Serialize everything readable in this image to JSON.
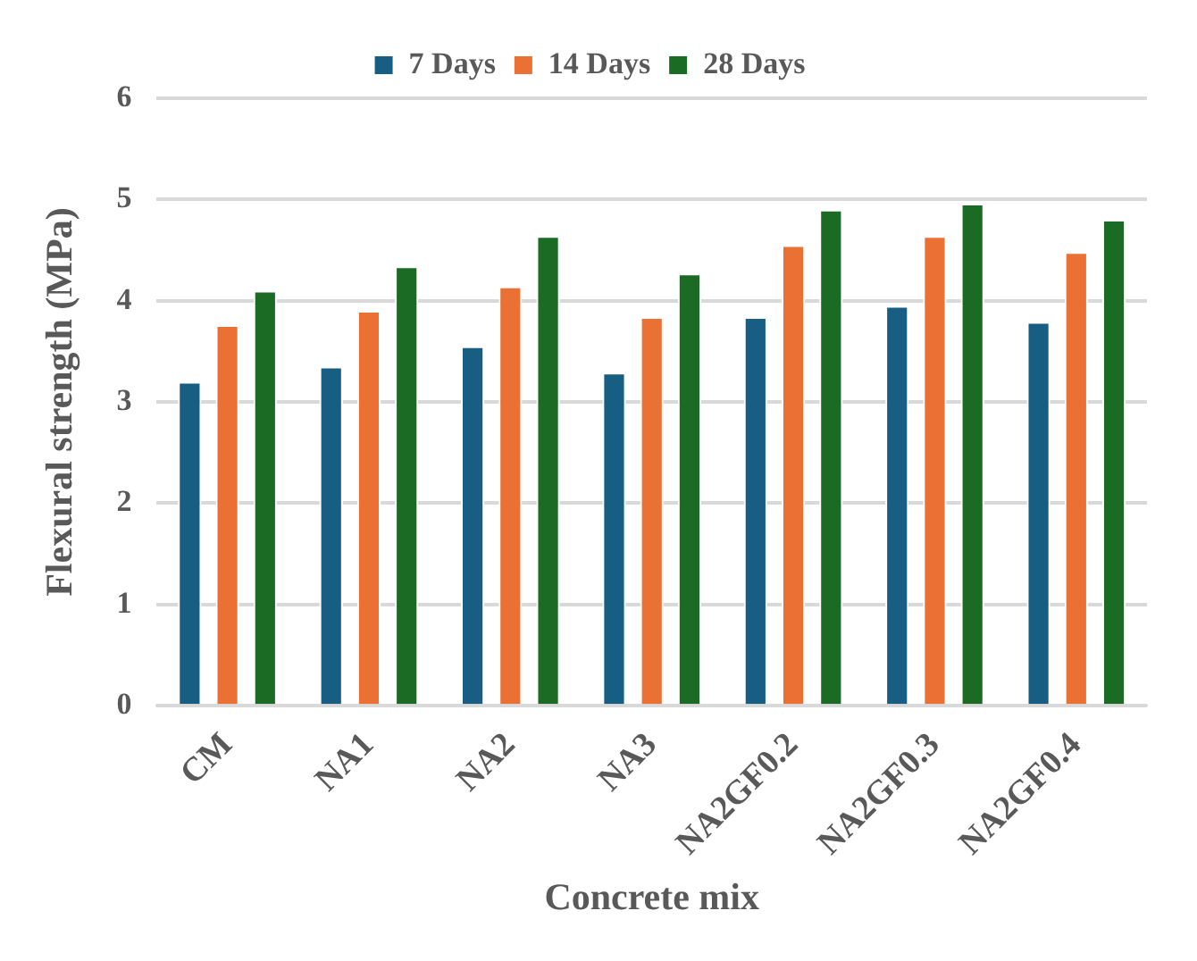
{
  "chart_data": {
    "type": "bar",
    "xlabel": "Concrete mix",
    "ylabel": "Flexural strength (MPa)",
    "categories": [
      "CM",
      "NA1",
      "NA2",
      "NA3",
      "NA2GF0.2",
      "NA2GF0.3",
      "NA2GF0.4"
    ],
    "series": [
      {
        "name": "7 Days",
        "color": "#175e82",
        "values": [
          3.2,
          3.35,
          3.55,
          3.29,
          3.84,
          3.95,
          3.79
        ]
      },
      {
        "name": "14 Days",
        "color": "#ea7133",
        "values": [
          3.76,
          3.9,
          4.14,
          3.84,
          4.55,
          4.64,
          4.48
        ]
      },
      {
        "name": "28 Days",
        "color": "#1b6b25",
        "values": [
          4.1,
          4.34,
          4.64,
          4.27,
          4.9,
          4.96,
          4.8
        ]
      }
    ],
    "ylim": [
      0,
      6
    ],
    "yticks": [
      0,
      1,
      2,
      3,
      4,
      5,
      6
    ],
    "grid": "y",
    "legend": "top"
  }
}
